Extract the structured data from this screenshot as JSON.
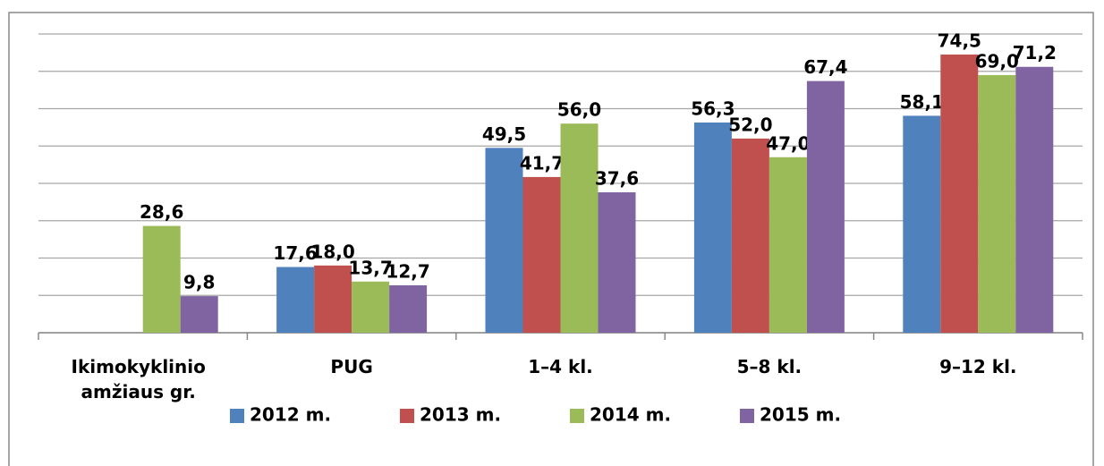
{
  "chart_data": {
    "type": "bar",
    "categories": [
      "Ikimokyklinio amžiaus gr.",
      "PUG",
      "1–4 kl.",
      "5–8 kl.",
      "9–12 kl."
    ],
    "series": [
      {
        "name": "2012 m.",
        "color": "#4f81bd",
        "values": [
          null,
          17.6,
          49.5,
          56.3,
          58.1
        ],
        "value_labels": [
          null,
          "17,6",
          "49,5",
          "56,3",
          "58,1"
        ]
      },
      {
        "name": "2013 m.",
        "color": "#c0504d",
        "values": [
          null,
          18.0,
          41.7,
          52.0,
          74.5
        ],
        "value_labels": [
          null,
          "18,0",
          "41,7",
          "52,0",
          "74,5"
        ]
      },
      {
        "name": "2014 m.",
        "color": "#9bbb59",
        "values": [
          28.6,
          13.7,
          56.0,
          47.0,
          69.0
        ],
        "value_labels": [
          "28,6",
          "13,7",
          "56,0",
          "47,0",
          "69,0"
        ]
      },
      {
        "name": "2015 m.",
        "color": "#8064a2",
        "values": [
          9.8,
          12.7,
          37.6,
          67.4,
          71.2
        ],
        "value_labels": [
          "9,8",
          "12,7",
          "37,6",
          "67,4",
          "71,2"
        ]
      }
    ],
    "ylim": [
      0,
      80
    ],
    "yticks": [
      0,
      10,
      20,
      30,
      40,
      50,
      60,
      70,
      80
    ],
    "grid": true,
    "legend": "bottom"
  }
}
